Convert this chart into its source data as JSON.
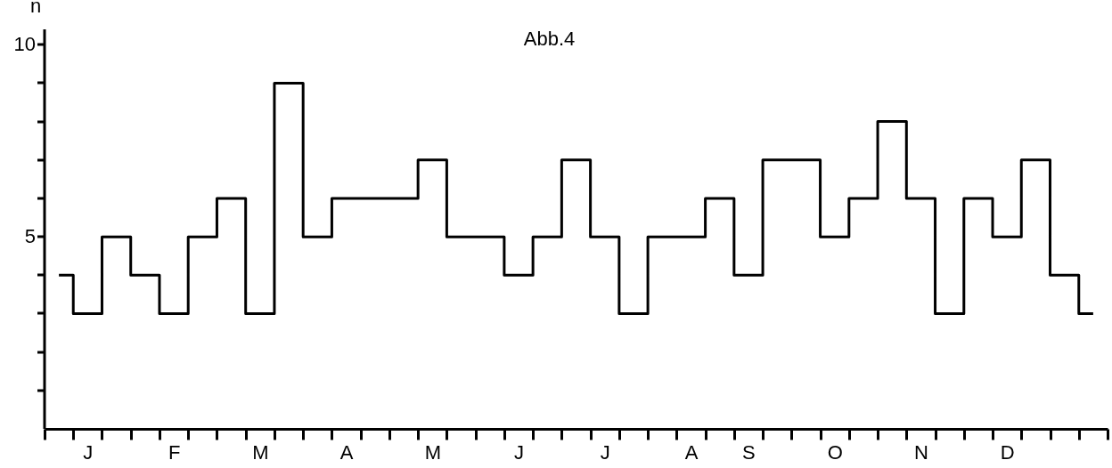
{
  "chart_data": {
    "type": "step",
    "title": "Abb.4",
    "ylabel": "n",
    "categories": [
      null,
      "J",
      null,
      null,
      "F",
      null,
      null,
      "M",
      null,
      null,
      "A",
      null,
      null,
      "M",
      null,
      null,
      "J",
      null,
      null,
      "J",
      null,
      null,
      "A",
      null,
      "S",
      null,
      null,
      "O",
      null,
      null,
      "N",
      null,
      null,
      "D",
      null,
      null,
      null
    ],
    "values": [
      4,
      3,
      5,
      4,
      3,
      5,
      6,
      3,
      9,
      5,
      6,
      6,
      6,
      7,
      5,
      5,
      4,
      5,
      7,
      5,
      3,
      5,
      5,
      6,
      4,
      7,
      7,
      5,
      6,
      8,
      6,
      3,
      6,
      5,
      7,
      4,
      3
    ],
    "color": "#000000",
    "ylim": [
      0,
      10.4
    ],
    "yticks": [
      {
        "value": 1,
        "label": null
      },
      {
        "value": 2,
        "label": null
      },
      {
        "value": 3,
        "label": null
      },
      {
        "value": 4,
        "label": null
      },
      5,
      {
        "value": 6,
        "label": null
      },
      {
        "value": 7,
        "label": null
      },
      {
        "value": 8,
        "label": null
      },
      {
        "value": 9,
        "label": null
      },
      10
    ]
  }
}
